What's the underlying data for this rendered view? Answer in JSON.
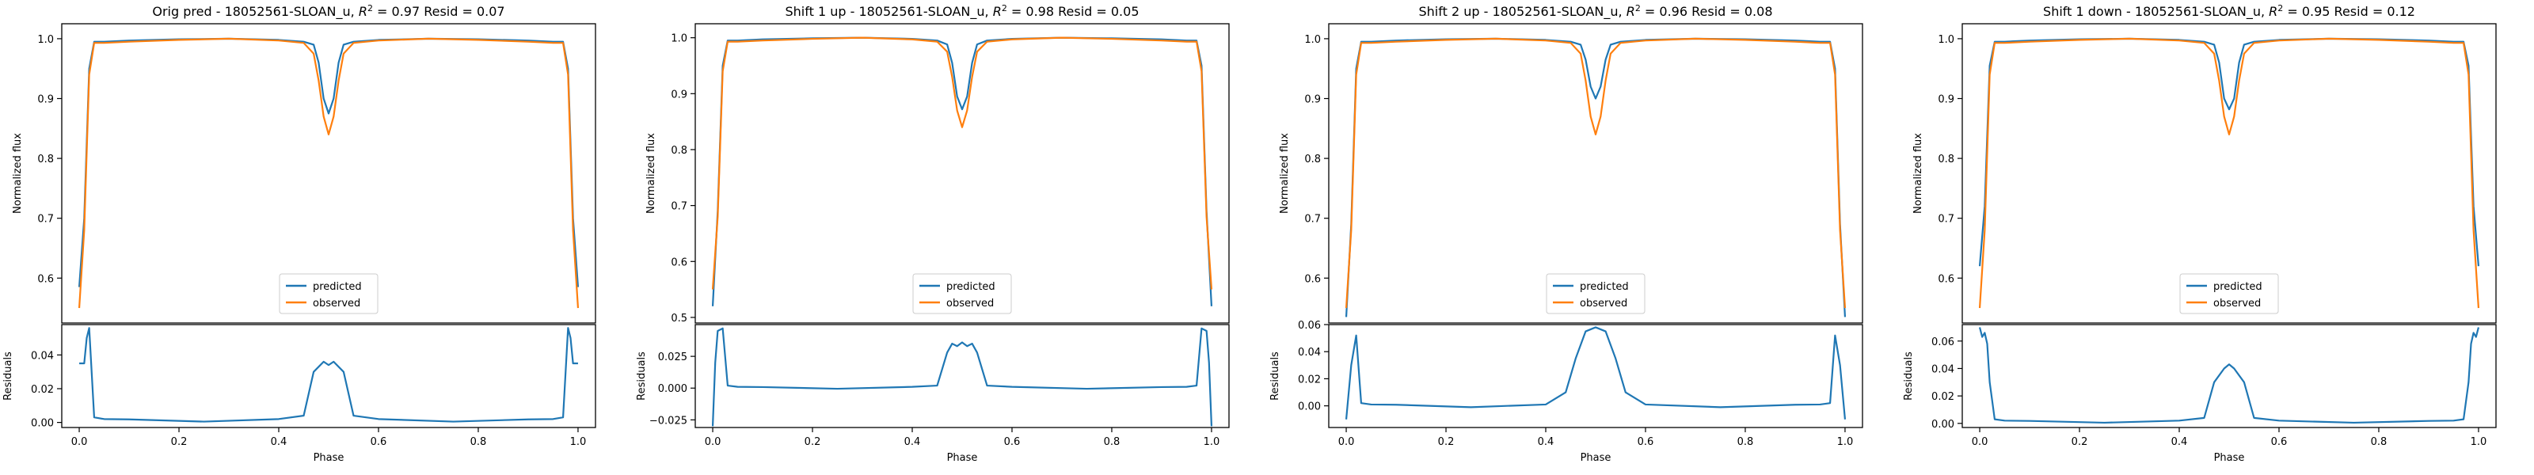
{
  "figure": {
    "legend_predicted": "predicted",
    "legend_observed": "observed",
    "flux_ylabel": "Normalized flux",
    "resid_ylabel": "Residuals",
    "xlabel": "Phase",
    "pred_color": "#1f77b4",
    "obs_color": "#ff7f0e"
  },
  "chart_data": [
    {
      "type": "line",
      "title_prefix": "Orig pred - 18052561-SLOAN_u, ",
      "r2": "0.97",
      "resid_text": "Resid = 0.07",
      "ylabel": "Normalized flux",
      "ylim": [
        0.525,
        1.025
      ],
      "yticks": [
        0.6,
        0.7,
        0.8,
        0.9,
        1.0
      ],
      "yticklabels": [
        "0.6",
        "0.7",
        "0.8",
        "0.9",
        "1.0"
      ],
      "x": [
        0.0,
        0.01,
        0.02,
        0.03,
        0.05,
        0.1,
        0.2,
        0.3,
        0.4,
        0.45,
        0.47,
        0.48,
        0.49,
        0.5,
        0.51,
        0.52,
        0.53,
        0.55,
        0.6,
        0.7,
        0.8,
        0.9,
        0.95,
        0.97,
        0.98,
        0.99,
        1.0
      ],
      "series": [
        {
          "name": "predicted",
          "values": [
            0.585,
            0.7,
            0.95,
            0.995,
            0.995,
            0.997,
            0.999,
            1.0,
            0.998,
            0.995,
            0.99,
            0.96,
            0.9,
            0.875,
            0.9,
            0.96,
            0.99,
            0.995,
            0.998,
            1.0,
            0.999,
            0.997,
            0.995,
            0.995,
            0.95,
            0.7,
            0.585
          ]
        },
        {
          "name": "observed",
          "values": [
            0.55,
            0.68,
            0.94,
            0.993,
            0.993,
            0.995,
            0.998,
            1.0,
            0.997,
            0.993,
            0.975,
            0.93,
            0.87,
            0.84,
            0.87,
            0.93,
            0.975,
            0.993,
            0.997,
            1.0,
            0.998,
            0.995,
            0.993,
            0.993,
            0.94,
            0.68,
            0.55
          ]
        }
      ],
      "residuals": {
        "ylabel": "Residuals",
        "ylim": [
          -0.003,
          0.058
        ],
        "yticks": [
          0.0,
          0.02,
          0.04
        ],
        "yticklabels": [
          "0.00",
          "0.02",
          "0.04"
        ],
        "x": [
          0.0,
          0.01,
          0.015,
          0.02,
          0.03,
          0.05,
          0.1,
          0.25,
          0.4,
          0.45,
          0.47,
          0.49,
          0.5,
          0.51,
          0.53,
          0.55,
          0.6,
          0.75,
          0.9,
          0.95,
          0.97,
          0.98,
          0.985,
          0.99,
          1.0
        ],
        "values": [
          0.035,
          0.035,
          0.05,
          0.056,
          0.003,
          0.002,
          0.0018,
          0.0005,
          0.002,
          0.004,
          0.03,
          0.036,
          0.034,
          0.036,
          0.03,
          0.004,
          0.002,
          0.0005,
          0.0018,
          0.002,
          0.003,
          0.056,
          0.05,
          0.035,
          0.035
        ]
      }
    },
    {
      "type": "line",
      "title_prefix": "Shift 1 up - 18052561-SLOAN_u, ",
      "r2": "0.98",
      "resid_text": "Resid = 0.05",
      "ylabel": "Normalized flux",
      "ylim": [
        0.49,
        1.025
      ],
      "yticks": [
        0.5,
        0.6,
        0.7,
        0.8,
        0.9,
        1.0
      ],
      "yticklabels": [
        "0.5",
        "0.6",
        "0.7",
        "0.8",
        "0.9",
        "1.0"
      ],
      "x": [
        0.0,
        0.01,
        0.02,
        0.03,
        0.05,
        0.1,
        0.2,
        0.3,
        0.4,
        0.45,
        0.47,
        0.48,
        0.49,
        0.5,
        0.51,
        0.52,
        0.53,
        0.55,
        0.6,
        0.7,
        0.8,
        0.9,
        0.95,
        0.97,
        0.98,
        0.99,
        1.0
      ],
      "series": [
        {
          "name": "predicted",
          "values": [
            0.52,
            0.69,
            0.95,
            0.995,
            0.995,
            0.997,
            0.999,
            1.0,
            0.998,
            0.995,
            0.988,
            0.955,
            0.895,
            0.872,
            0.895,
            0.955,
            0.988,
            0.995,
            0.998,
            1.0,
            0.999,
            0.997,
            0.995,
            0.995,
            0.95,
            0.69,
            0.52
          ]
        },
        {
          "name": "observed",
          "values": [
            0.55,
            0.68,
            0.94,
            0.993,
            0.993,
            0.995,
            0.998,
            1.0,
            0.997,
            0.993,
            0.975,
            0.93,
            0.87,
            0.84,
            0.87,
            0.93,
            0.975,
            0.993,
            0.997,
            1.0,
            0.998,
            0.995,
            0.993,
            0.993,
            0.94,
            0.68,
            0.55
          ]
        }
      ],
      "residuals": {
        "ylabel": "Residuals",
        "ylim": [
          -0.031,
          0.05
        ],
        "yticks": [
          -0.025,
          0.0,
          0.025
        ],
        "yticklabels": [
          "−0.025",
          "0.000",
          "0.025"
        ],
        "x": [
          0.0,
          0.005,
          0.01,
          0.02,
          0.03,
          0.05,
          0.1,
          0.25,
          0.4,
          0.45,
          0.47,
          0.48,
          0.49,
          0.5,
          0.51,
          0.52,
          0.53,
          0.55,
          0.6,
          0.75,
          0.9,
          0.95,
          0.97,
          0.98,
          0.99,
          0.995,
          1.0
        ],
        "values": [
          -0.03,
          0.02,
          0.045,
          0.047,
          0.002,
          0.001,
          0.0008,
          -0.0005,
          0.001,
          0.002,
          0.028,
          0.035,
          0.033,
          0.036,
          0.033,
          0.035,
          0.028,
          0.002,
          0.001,
          -0.0005,
          0.0008,
          0.001,
          0.002,
          0.047,
          0.045,
          0.02,
          -0.03
        ]
      }
    },
    {
      "type": "line",
      "title_prefix": "Shift 2 up - 18052561-SLOAN_u, ",
      "r2": "0.96",
      "resid_text": "Resid = 0.08",
      "ylabel": "Normalized flux",
      "ylim": [
        0.525,
        1.025
      ],
      "yticks": [
        0.6,
        0.7,
        0.8,
        0.9,
        1.0
      ],
      "yticklabels": [
        "0.6",
        "0.7",
        "0.8",
        "0.9",
        "1.0"
      ],
      "x": [
        0.0,
        0.01,
        0.02,
        0.03,
        0.05,
        0.1,
        0.2,
        0.3,
        0.4,
        0.45,
        0.47,
        0.48,
        0.49,
        0.5,
        0.51,
        0.52,
        0.53,
        0.55,
        0.6,
        0.7,
        0.8,
        0.9,
        0.95,
        0.97,
        0.98,
        0.99,
        1.0
      ],
      "series": [
        {
          "name": "predicted",
          "values": [
            0.535,
            0.69,
            0.95,
            0.995,
            0.995,
            0.997,
            0.999,
            1.0,
            0.998,
            0.995,
            0.99,
            0.965,
            0.92,
            0.9,
            0.92,
            0.965,
            0.99,
            0.995,
            0.998,
            1.0,
            0.999,
            0.997,
            0.995,
            0.995,
            0.95,
            0.69,
            0.535
          ]
        },
        {
          "name": "observed",
          "values": [
            0.55,
            0.68,
            0.94,
            0.993,
            0.993,
            0.995,
            0.998,
            1.0,
            0.997,
            0.993,
            0.975,
            0.93,
            0.87,
            0.84,
            0.87,
            0.93,
            0.975,
            0.993,
            0.997,
            1.0,
            0.998,
            0.995,
            0.993,
            0.993,
            0.94,
            0.68,
            0.55
          ]
        }
      ],
      "residuals": {
        "ylabel": "Residuals",
        "ylim": [
          -0.016,
          0.06
        ],
        "yticks": [
          0.0,
          0.02,
          0.04,
          0.06
        ],
        "yticklabels": [
          "0.00",
          "0.02",
          "0.04",
          "0.06"
        ],
        "x": [
          0.0,
          0.01,
          0.02,
          0.03,
          0.05,
          0.1,
          0.25,
          0.4,
          0.44,
          0.46,
          0.48,
          0.5,
          0.52,
          0.54,
          0.56,
          0.6,
          0.75,
          0.9,
          0.95,
          0.97,
          0.98,
          0.99,
          1.0
        ],
        "values": [
          -0.01,
          0.03,
          0.052,
          0.002,
          0.001,
          0.0008,
          -0.001,
          0.001,
          0.01,
          0.035,
          0.055,
          0.058,
          0.055,
          0.035,
          0.01,
          0.001,
          -0.001,
          0.0008,
          0.001,
          0.002,
          0.052,
          0.03,
          -0.01
        ]
      }
    },
    {
      "type": "line",
      "title_prefix": "Shift 1 down - 18052561-SLOAN_u, ",
      "r2": "0.95",
      "resid_text": "Resid = 0.12",
      "ylabel": "Normalized flux",
      "ylim": [
        0.525,
        1.025
      ],
      "yticks": [
        0.6,
        0.7,
        0.8,
        0.9,
        1.0
      ],
      "yticklabels": [
        "0.6",
        "0.7",
        "0.8",
        "0.9",
        "1.0"
      ],
      "x": [
        0.0,
        0.01,
        0.02,
        0.03,
        0.05,
        0.1,
        0.2,
        0.3,
        0.4,
        0.45,
        0.47,
        0.48,
        0.49,
        0.5,
        0.51,
        0.52,
        0.53,
        0.55,
        0.6,
        0.7,
        0.8,
        0.9,
        0.95,
        0.97,
        0.98,
        0.99,
        1.0
      ],
      "series": [
        {
          "name": "predicted",
          "values": [
            0.62,
            0.72,
            0.955,
            0.995,
            0.995,
            0.997,
            0.999,
            1.0,
            0.998,
            0.995,
            0.99,
            0.96,
            0.9,
            0.882,
            0.9,
            0.96,
            0.99,
            0.995,
            0.998,
            1.0,
            0.999,
            0.997,
            0.995,
            0.995,
            0.955,
            0.72,
            0.62
          ]
        },
        {
          "name": "observed",
          "values": [
            0.55,
            0.68,
            0.94,
            0.993,
            0.993,
            0.995,
            0.998,
            1.0,
            0.997,
            0.993,
            0.975,
            0.93,
            0.87,
            0.84,
            0.87,
            0.93,
            0.975,
            0.993,
            0.997,
            1.0,
            0.998,
            0.995,
            0.993,
            0.993,
            0.94,
            0.68,
            0.55
          ]
        }
      ],
      "residuals": {
        "ylabel": "Residuals",
        "ylim": [
          -0.003,
          0.072
        ],
        "yticks": [
          0.0,
          0.02,
          0.04,
          0.06
        ],
        "yticklabels": [
          "0.00",
          "0.02",
          "0.04",
          "0.06"
        ],
        "x": [
          0.0,
          0.005,
          0.01,
          0.015,
          0.02,
          0.03,
          0.05,
          0.1,
          0.25,
          0.4,
          0.45,
          0.47,
          0.49,
          0.5,
          0.51,
          0.53,
          0.55,
          0.6,
          0.75,
          0.9,
          0.95,
          0.97,
          0.98,
          0.985,
          0.99,
          0.995,
          1.0
        ],
        "values": [
          0.07,
          0.063,
          0.066,
          0.058,
          0.03,
          0.003,
          0.002,
          0.0018,
          0.0005,
          0.002,
          0.004,
          0.03,
          0.04,
          0.043,
          0.04,
          0.03,
          0.004,
          0.002,
          0.0005,
          0.0018,
          0.002,
          0.003,
          0.03,
          0.058,
          0.066,
          0.063,
          0.07
        ]
      }
    }
  ]
}
